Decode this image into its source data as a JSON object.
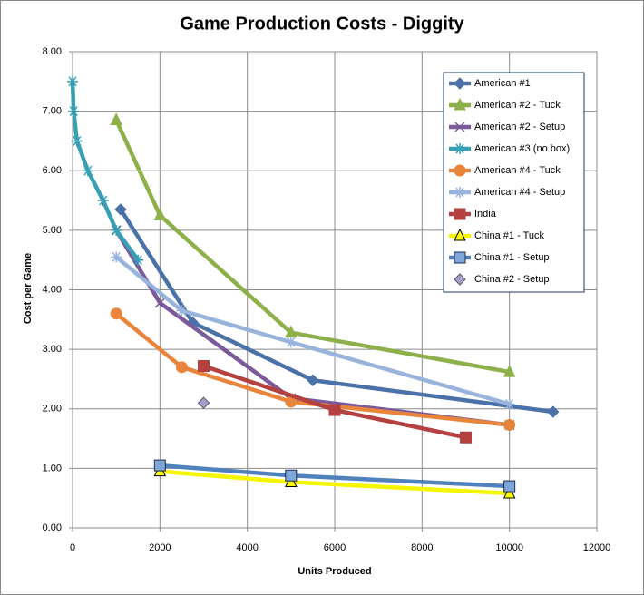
{
  "chart_data": {
    "type": "line",
    "title": "Game Production Costs - Diggity",
    "x_label": "Units Produced",
    "y_label": "Cost per Game",
    "xlim": [
      0,
      12000
    ],
    "xticks": [
      0,
      2000,
      4000,
      6000,
      8000,
      10000,
      12000
    ],
    "ylim": [
      0,
      8
    ],
    "yticks": [
      {
        "value": 0,
        "label": "0.00"
      },
      {
        "value": 1,
        "label": "1.00"
      },
      {
        "value": 2,
        "label": "2.00"
      },
      {
        "value": 3,
        "label": "3.00"
      },
      {
        "value": 4,
        "label": "4.00"
      },
      {
        "value": 5,
        "label": "5.00"
      },
      {
        "value": 6,
        "label": "6.00"
      },
      {
        "value": 7,
        "label": "7.00"
      },
      {
        "value": 8,
        "label": "8.00"
      }
    ],
    "grid": true,
    "legend": "right",
    "series": [
      {
        "name": "American #1",
        "color": "#4a72a8",
        "marker": "diamond",
        "x": [
          1100,
          2750,
          5500,
          11000
        ],
        "values": [
          5.35,
          3.45,
          2.48,
          1.95
        ]
      },
      {
        "name": "American #2 - Tuck",
        "color": "#8db04a",
        "marker": "triangle",
        "x": [
          1000,
          2000,
          5000,
          10000
        ],
        "values": [
          6.85,
          5.25,
          3.28,
          2.62
        ]
      },
      {
        "name": "American #2 - Setup",
        "color": "#7a5a9a",
        "marker": "x",
        "x": [
          1000,
          2000,
          5000,
          10000
        ],
        "values": [
          5.0,
          3.78,
          2.18,
          1.73
        ]
      },
      {
        "name": "American #3 (no box)",
        "color": "#38a0b5",
        "marker": "star",
        "x": [
          0,
          25,
          100,
          350,
          700,
          1000,
          1500
        ],
        "values": [
          7.5,
          7.0,
          6.5,
          6.0,
          5.5,
          5.0,
          4.5
        ]
      },
      {
        "name": "American #4 - Tuck",
        "color": "#e8843c",
        "marker": "circle",
        "x": [
          1000,
          2500,
          5000,
          10000
        ],
        "values": [
          3.6,
          2.7,
          2.12,
          1.73
        ]
      },
      {
        "name": "American #4 - Setup",
        "color": "#98b4dc",
        "marker": "star",
        "x": [
          1000,
          2500,
          5000,
          10000
        ],
        "values": [
          4.55,
          3.65,
          3.12,
          2.08
        ]
      },
      {
        "name": "India",
        "color": "#b44040",
        "marker": "square",
        "x": [
          3000,
          6000,
          9000
        ],
        "values": [
          2.72,
          1.98,
          1.52
        ]
      },
      {
        "name": "China #1 - Tuck",
        "color": "#f5f500",
        "marker": "triangle",
        "marker_fill": "#ffff00",
        "marker_stroke": "#000000",
        "x": [
          2000,
          5000,
          10000
        ],
        "values": [
          0.95,
          0.77,
          0.58
        ]
      },
      {
        "name": "China #1 - Setup",
        "color": "#4f81bd",
        "marker": "square",
        "marker_fill": "#7ea6d8",
        "marker_stroke": "#1f2f4f",
        "x": [
          2000,
          5000,
          10000
        ],
        "values": [
          1.05,
          0.88,
          0.7
        ]
      },
      {
        "name": "China #2 - Setup",
        "color": "#a79fc8",
        "marker": "diamond",
        "marker_stroke": "#5a5070",
        "line": false,
        "x": [
          3000
        ],
        "values": [
          2.1
        ]
      }
    ]
  }
}
